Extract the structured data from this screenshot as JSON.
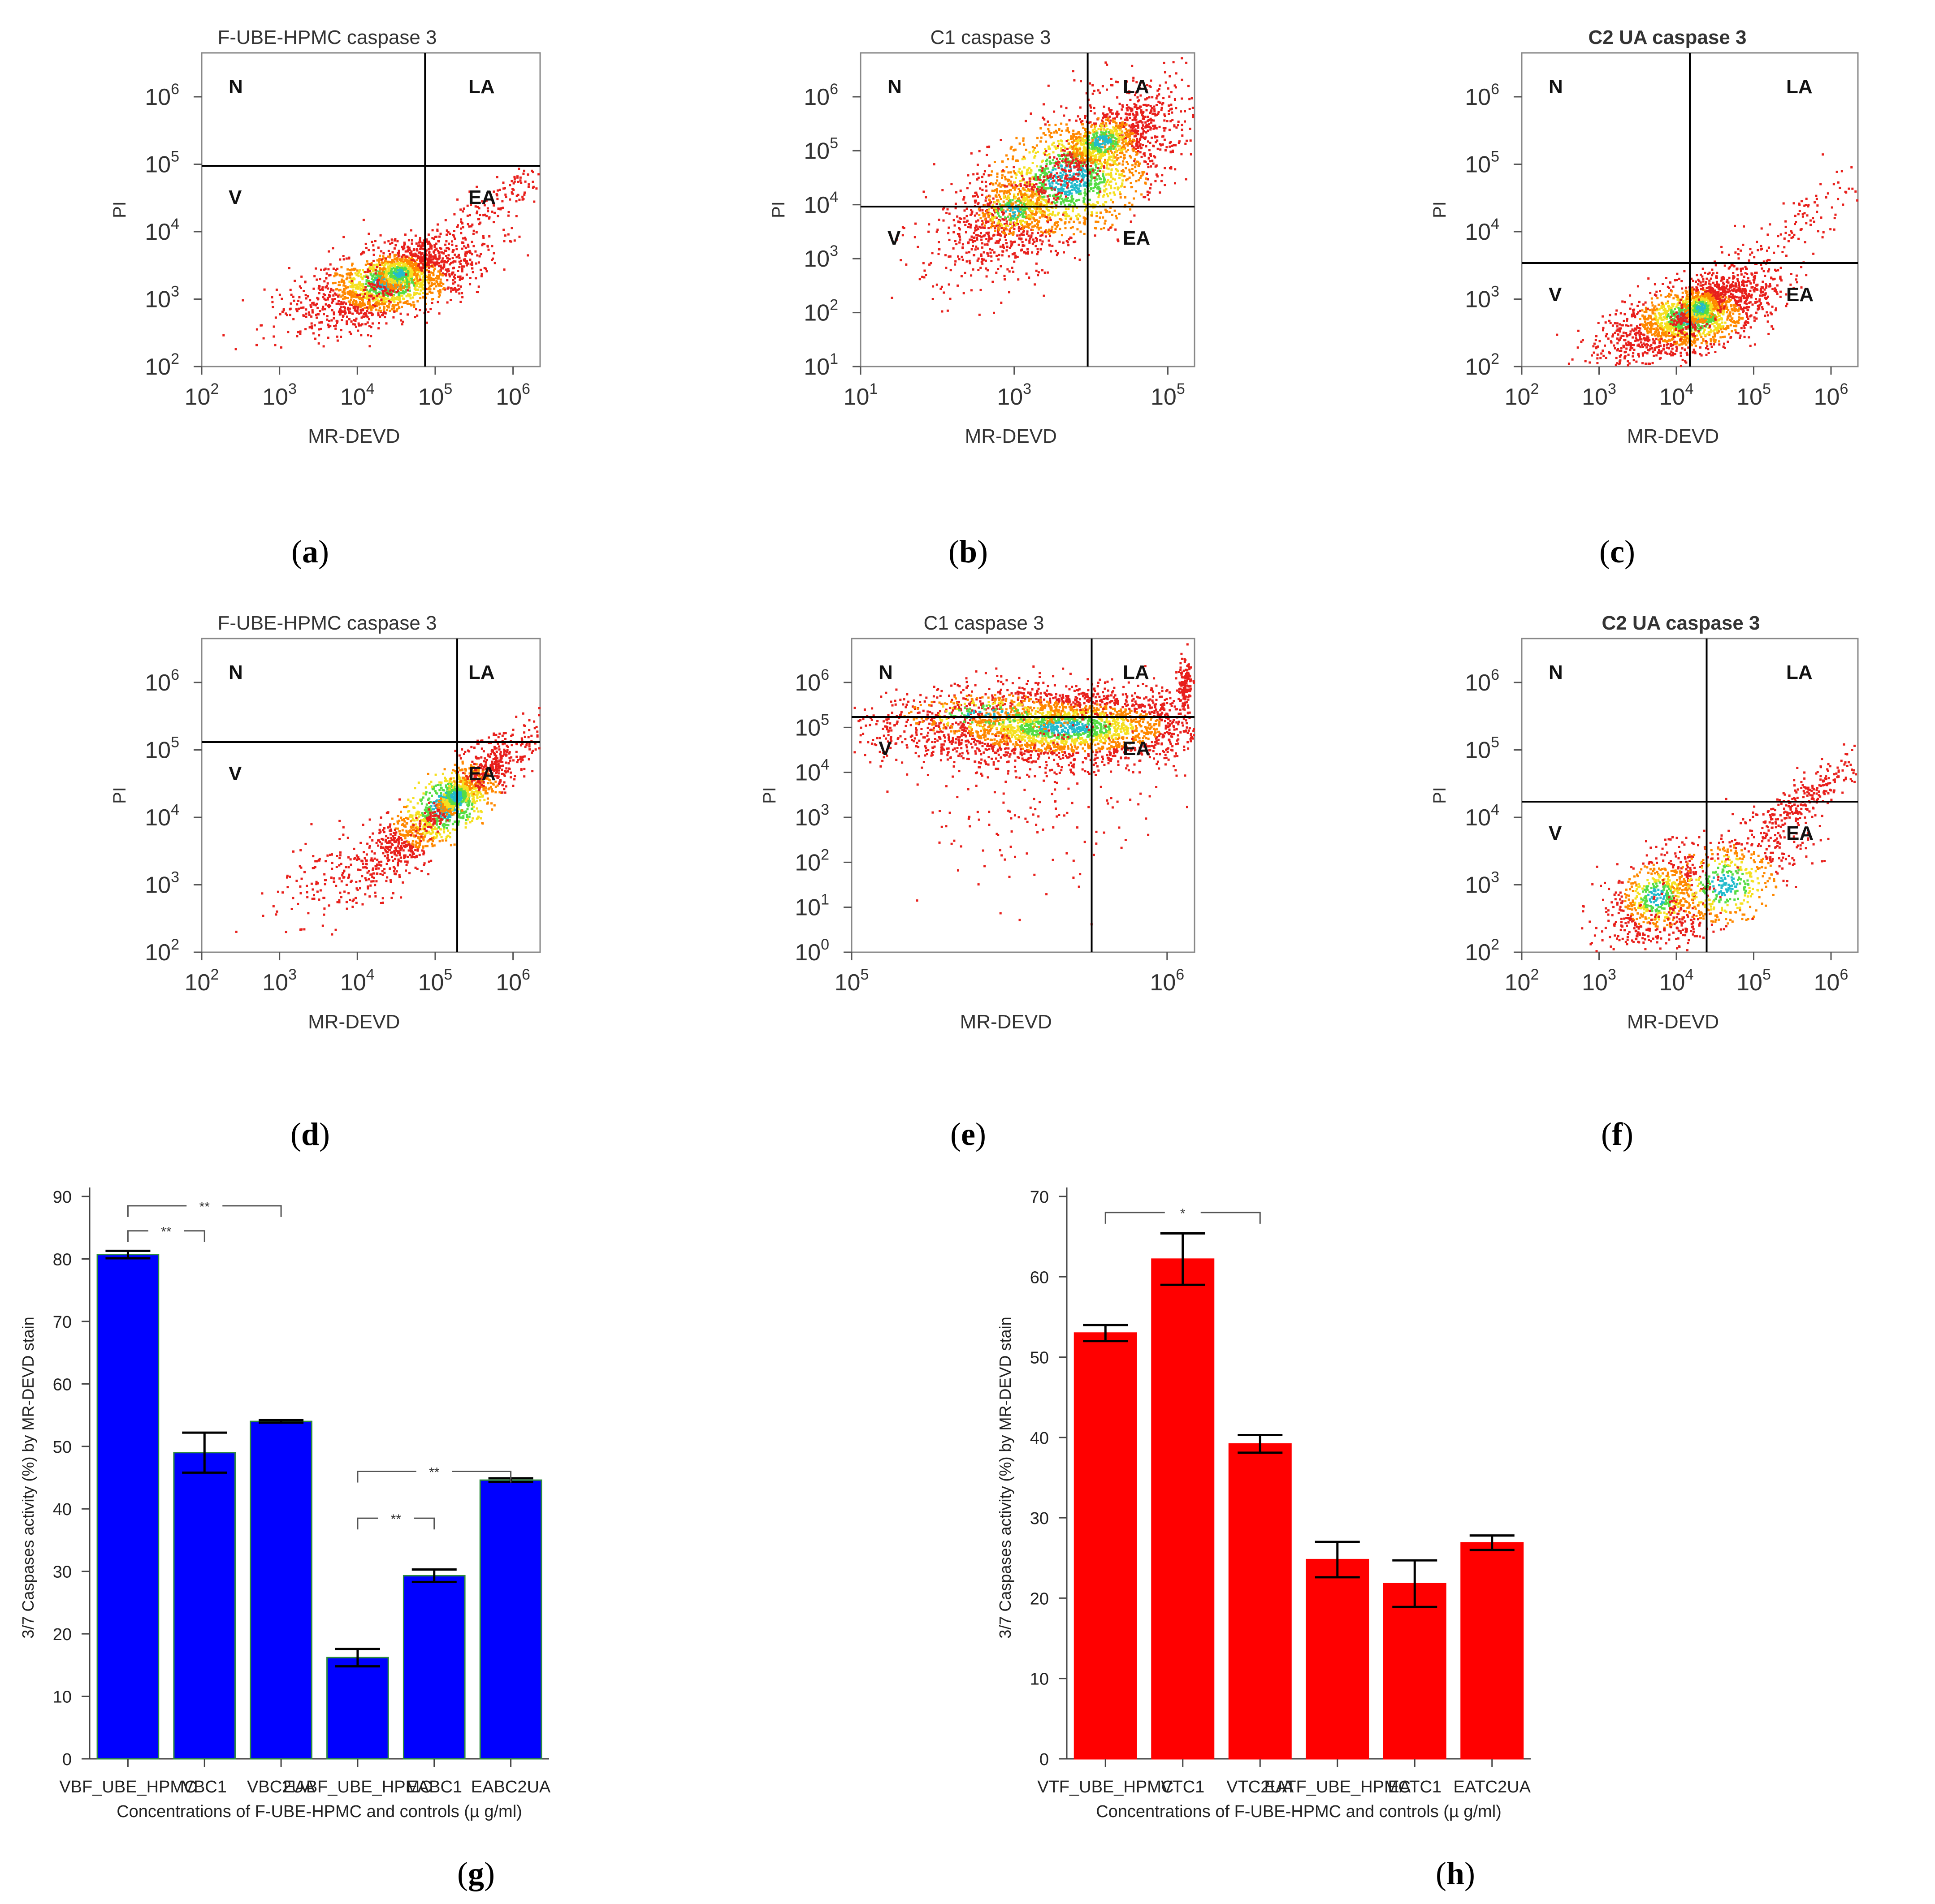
{
  "figure": {
    "panels": [
      "a",
      "b",
      "c",
      "d",
      "e",
      "f",
      "g",
      "h"
    ]
  },
  "scatter_plots": [
    {
      "id": "a",
      "title": "F-UBE-HPMC caspase 3",
      "xlabel": "MR-DEVD",
      "ylabel": "PI",
      "xticks": [
        "2",
        "3",
        "4",
        "5",
        "6"
      ],
      "yticks": [
        "2",
        "3",
        "4",
        "5",
        "6"
      ],
      "quadrants": [
        "N",
        "LA",
        "V",
        "EA"
      ]
    },
    {
      "id": "b",
      "title": "C1 caspase 3",
      "xlabel": "MR-DEVD",
      "ylabel": "PI",
      "xticks": [
        "1",
        "3",
        "5"
      ],
      "yticks": [
        "1",
        "2",
        "3",
        "4",
        "5",
        "6"
      ],
      "quadrants": [
        "N",
        "LA",
        "V",
        "EA"
      ]
    },
    {
      "id": "c",
      "title": "C2 UA caspase 3",
      "xlabel": "MR-DEVD",
      "ylabel": "PI",
      "xticks": [
        "2",
        "3",
        "4",
        "5",
        "6"
      ],
      "yticks": [
        "2",
        "3",
        "4",
        "5",
        "6"
      ],
      "quadrants": [
        "N",
        "LA",
        "V",
        "EA"
      ]
    },
    {
      "id": "d",
      "title": "F-UBE-HPMC caspase 3",
      "xlabel": "MR-DEVD",
      "ylabel": "PI",
      "xticks": [
        "2",
        "3",
        "4",
        "5",
        "6"
      ],
      "yticks": [
        "2",
        "3",
        "4",
        "5",
        "6"
      ],
      "quadrants": [
        "N",
        "LA",
        "V",
        "EA"
      ]
    },
    {
      "id": "e",
      "title": "C1 caspase 3",
      "xlabel": "MR-DEVD",
      "ylabel": "PI",
      "xticks": [
        "5",
        "6"
      ],
      "yticks": [
        "0",
        "1",
        "2",
        "3",
        "4",
        "5",
        "6"
      ],
      "quadrants": [
        "N",
        "LA",
        "V",
        "EA"
      ]
    },
    {
      "id": "f",
      "title": "C2 UA caspase 3",
      "xlabel": "MR-DEVD",
      "ylabel": "PI",
      "xticks": [
        "2",
        "3",
        "4",
        "5",
        "6"
      ],
      "yticks": [
        "2",
        "3",
        "4",
        "5",
        "6"
      ],
      "quadrants": [
        "N",
        "LA",
        "V",
        "EA"
      ]
    }
  ],
  "tick_base": "10",
  "chart_data": [
    {
      "id": "g",
      "type": "bar",
      "color": "#0000ff",
      "categories": [
        "VBF_UBE_HPMC",
        "VBC1",
        "VBC2UA",
        "EABF_UBE_HPMC",
        "EABC1",
        "EABC2UA"
      ],
      "values": [
        80.7,
        49.0,
        54.0,
        16.2,
        29.3,
        44.6
      ],
      "errors": [
        0.6,
        3.2,
        0.2,
        1.4,
        1.0,
        0.3
      ],
      "xlabel": "Concentrations of F-UBE-HPMC and controls (µ g/ml)",
      "ylabel": "3/7 Caspases activity (%) by MR-DEVD stain",
      "ylim": [
        0,
        90
      ],
      "yticks": [
        "0",
        "10",
        "20",
        "30",
        "40",
        "50",
        "60",
        "70",
        "80",
        "90"
      ],
      "significance": [
        {
          "from": 0,
          "to": 2,
          "label": "**"
        },
        {
          "from": 0,
          "to": 1,
          "label": "**"
        },
        {
          "from": 3,
          "to": 5,
          "label": "**"
        },
        {
          "from": 3,
          "to": 4,
          "label": "**"
        }
      ]
    },
    {
      "id": "h",
      "type": "bar",
      "color": "#ff0000",
      "categories": [
        "VTF_UBE_HPMC",
        "VTC1",
        "VTC2UA",
        "EATF_UBE_HPMC",
        "EATC1",
        "EATC2UA"
      ],
      "values": [
        53.0,
        62.2,
        39.2,
        24.8,
        21.8,
        26.9
      ],
      "errors": [
        1.0,
        3.2,
        1.1,
        2.2,
        2.9,
        0.9
      ],
      "xlabel": "Concentrations of F-UBE-HPMC and controls (µ g/ml)",
      "ylabel": "3/7 Caspases activity (%) by MR-DEVD stain",
      "ylim": [
        0,
        70
      ],
      "yticks": [
        "0",
        "10",
        "20",
        "30",
        "40",
        "50",
        "60",
        "70"
      ],
      "significance": [
        {
          "from": 0,
          "to": 2,
          "label": "*"
        }
      ]
    }
  ]
}
